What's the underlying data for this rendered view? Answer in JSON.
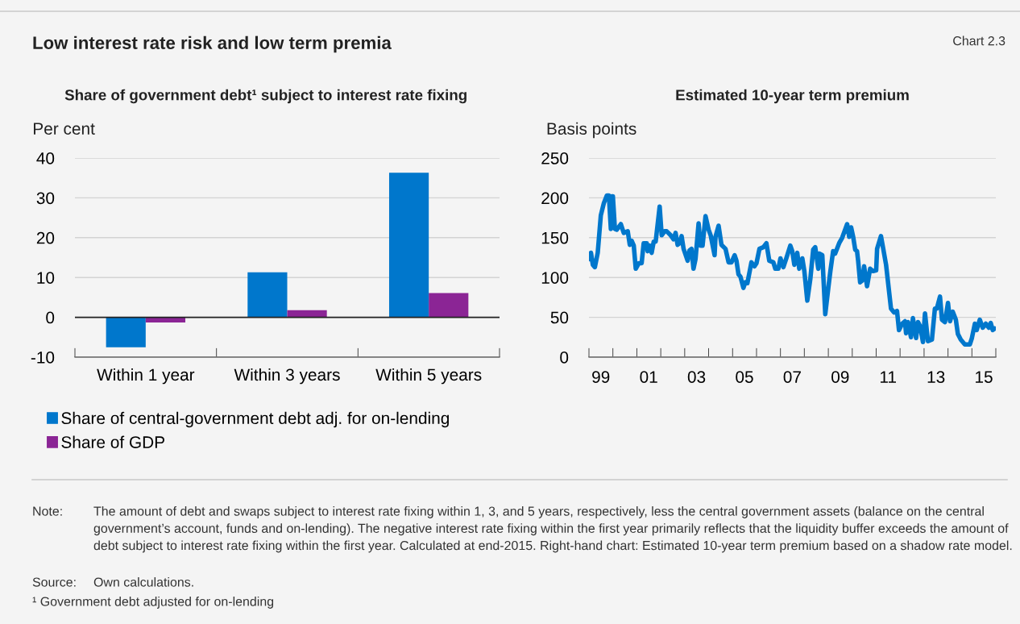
{
  "chart_data": [
    {
      "type": "other",
      "title": "Low interest rate risk and low term premia",
      "subtitle": "Chart 2.3",
      "annotations": [
        "Note:",
        "The amount of debt and swaps subject to interest rate fixing within 1, 3, and 5 years, respectively, less the central government assets (balance on the central government’s account, funds and on-lending). The negative interest rate fixing within the first year primarily reflects that the liquidity buffer exceeds the amount of debt subject to interest rate fixing within the first year. Calculated at end-2015. Right-hand chart: Estimated 10-year term premium based on a shadow rate model.",
        "Source:",
        "Own calculations.",
        "¹ Government debt adjusted for on-lending"
      ]
    },
    {
      "type": "bar",
      "title": "Share of government debt¹ subject to interest rate fixing",
      "ylabel": "Per cent",
      "categories": [
        "Within 1 year",
        "Within 3 years",
        "Within 5 years"
      ],
      "series": [
        {
          "name": "Share of central-government debt adj. for on-lending",
          "color": "#0077cc",
          "values": [
            -7.5,
            11.3,
            36.3
          ]
        },
        {
          "name": "Share of GDP",
          "color": "#8b2595",
          "values": [
            -1.3,
            1.8,
            6.1
          ]
        }
      ],
      "ylim": [
        -10,
        40
      ],
      "yticks": [
        -10,
        0,
        10,
        20,
        30,
        40
      ],
      "grid": "y",
      "legend": "bottom"
    },
    {
      "type": "line",
      "title": "Estimated 10-year term premium",
      "ylabel": "Basis points",
      "color": "#0077cc",
      "line_style": "solid",
      "marker": "none",
      "grid": "y",
      "xlim": [
        "1999-01-01",
        "2016-01-01"
      ],
      "ylim": [
        0,
        250
      ],
      "yticks": [
        0,
        50,
        100,
        150,
        200,
        250
      ],
      "xticks": [
        {
          "value": "1999-01-01",
          "label": null
        },
        {
          "value": "2000-01-01",
          "label": null
        },
        {
          "value": "2001-01-01",
          "label": null
        },
        {
          "value": "2002-01-01",
          "label": null
        },
        {
          "value": "2003-01-01",
          "label": null
        },
        {
          "value": "2004-01-01",
          "label": null
        },
        {
          "value": "2005-01-01",
          "label": null
        },
        {
          "value": "2006-01-01",
          "label": null
        },
        {
          "value": "2007-01-01",
          "label": null
        },
        {
          "value": "2008-01-01",
          "label": null
        },
        {
          "value": "2009-01-01",
          "label": null
        },
        {
          "value": "2010-01-01",
          "label": null
        },
        {
          "value": "2011-01-01",
          "label": null
        },
        {
          "value": "2012-01-01",
          "label": null
        },
        {
          "value": "2013-01-01",
          "label": null
        },
        {
          "value": "2014-01-01",
          "label": null
        },
        {
          "value": "2015-01-01",
          "label": null
        },
        {
          "value": "2016-01-01",
          "label": null
        },
        {
          "value": "1999-07-01",
          "label": "99"
        },
        {
          "value": "2001-07-01",
          "label": "01"
        },
        {
          "value": "2003-07-01",
          "label": "03"
        },
        {
          "value": "2005-07-01",
          "label": "05"
        },
        {
          "value": "2007-07-01",
          "label": "07"
        },
        {
          "value": "2009-07-01",
          "label": "09"
        },
        {
          "value": "2011-07-01",
          "label": "11"
        },
        {
          "value": "2013-07-01",
          "label": "13"
        },
        {
          "value": "2015-07-01",
          "label": "15"
        }
      ],
      "x": [
        "1999-01-15",
        "1999-02-01",
        "1999-03-01",
        "1999-04-01",
        "1999-05-15",
        "1999-07-01",
        "1999-08-15",
        "1999-10-01",
        "1999-11-01",
        "1999-12-01",
        "1999-12-15",
        "2000-01-01",
        "2000-02-01",
        "2000-03-01",
        "2000-05-01",
        "2000-06-15",
        "2000-08-15",
        "2000-09-15",
        "2000-10-15",
        "2000-11-15",
        "2000-12-15",
        "2001-02-01",
        "2001-03-15",
        "2001-04-15",
        "2001-06-01",
        "2001-06-15",
        "2001-07-15",
        "2001-08-15",
        "2001-09-15",
        "2001-10-15",
        "2001-12-15",
        "2002-01-15",
        "2002-03-01",
        "2002-04-01",
        "2002-06-01",
        "2002-07-15",
        "2002-08-15",
        "2002-09-15",
        "2002-10-15",
        "2002-11-15",
        "2002-12-15",
        "2003-02-15",
        "2003-03-15",
        "2003-04-15",
        "2003-05-15",
        "2003-06-15",
        "2003-08-01",
        "2003-09-01",
        "2003-10-01",
        "2003-11-15",
        "2004-01-01",
        "2004-02-01",
        "2004-04-01",
        "2004-04-15",
        "2004-06-01",
        "2004-07-15",
        "2004-09-15",
        "2004-11-01",
        "2004-12-15",
        "2005-02-01",
        "2005-03-01",
        "2005-04-01",
        "2005-05-01",
        "2005-06-15",
        "2005-07-15",
        "2005-08-15",
        "2005-10-15",
        "2005-12-01",
        "2006-01-01",
        "2006-02-15",
        "2006-04-15",
        "2006-06-01",
        "2006-07-15",
        "2006-09-15",
        "2006-10-15",
        "2006-12-01",
        "2007-01-01",
        "2007-02-15",
        "2007-04-01",
        "2007-06-01",
        "2007-07-01",
        "2007-08-01",
        "2007-09-15",
        "2007-10-15",
        "2007-12-01",
        "2008-01-01",
        "2008-02-15",
        "2008-04-01",
        "2008-05-15",
        "2008-06-15",
        "2008-08-01",
        "2008-08-15",
        "2008-10-01",
        "2008-11-15",
        "2009-01-01",
        "2009-02-01",
        "2009-03-15",
        "2009-04-15",
        "2009-06-15",
        "2009-08-01",
        "2009-10-15",
        "2009-11-15",
        "2009-12-15",
        "2010-01-15",
        "2010-02-15",
        "2010-03-15",
        "2010-04-01",
        "2010-05-01",
        "2010-06-01",
        "2010-07-01",
        "2010-08-15",
        "2010-10-01",
        "2010-11-15",
        "2011-01-01",
        "2011-01-15",
        "2011-03-15",
        "2011-04-15",
        "2011-06-01",
        "2011-07-01",
        "2011-08-15",
        "2011-10-01",
        "2011-11-15",
        "2011-12-15",
        "2012-02-01",
        "2012-03-15",
        "2012-04-01",
        "2012-05-01",
        "2012-06-15",
        "2012-07-15",
        "2012-09-01",
        "2012-10-01",
        "2012-11-01",
        "2012-12-15",
        "2013-01-15",
        "2013-03-01",
        "2013-05-01",
        "2013-06-15",
        "2013-07-15",
        "2013-09-01",
        "2013-10-01",
        "2013-11-15",
        "2014-01-01",
        "2014-02-01",
        "2014-03-15",
        "2014-05-01",
        "2014-06-01",
        "2014-07-15",
        "2014-09-15",
        "2014-12-01",
        "2015-01-01",
        "2015-02-15",
        "2015-03-15",
        "2015-05-01",
        "2015-06-15",
        "2015-08-01",
        "2015-09-15",
        "2015-10-15",
        "2015-11-15",
        "2015-12-15"
      ],
      "values": [
        123,
        131,
        116,
        113,
        131,
        178,
        193,
        203,
        203,
        161,
        202,
        202,
        161,
        160,
        167,
        156,
        158,
        141,
        146,
        140,
        111,
        118,
        118,
        143,
        143,
        133,
        140,
        131,
        145,
        145,
        189,
        153,
        158,
        158,
        153,
        148,
        156,
        141,
        143,
        152,
        136,
        121,
        134,
        136,
        111,
        123,
        168,
        140,
        140,
        177,
        160,
        153,
        128,
        151,
        165,
        141,
        136,
        119,
        119,
        128,
        121,
        104,
        101,
        87,
        94,
        93,
        119,
        114,
        118,
        136,
        138,
        143,
        121,
        119,
        111,
        111,
        124,
        113,
        124,
        140,
        133,
        116,
        131,
        111,
        124,
        108,
        71,
        98,
        135,
        138,
        111,
        130,
        128,
        54,
        87,
        108,
        133,
        130,
        143,
        150,
        167,
        151,
        163,
        151,
        135,
        133,
        121,
        94,
        96,
        114,
        89,
        111,
        108,
        109,
        136,
        152,
        138,
        116,
        94,
        61,
        56,
        58,
        34,
        42,
        45,
        30,
        44,
        25,
        49,
        24,
        44,
        39,
        19,
        55,
        20,
        22,
        61,
        61,
        76,
        47,
        44,
        68,
        45,
        57,
        47,
        29,
        22,
        16,
        16,
        24,
        42,
        34,
        47,
        37,
        42,
        37,
        43,
        34,
        36
      ]
    }
  ]
}
